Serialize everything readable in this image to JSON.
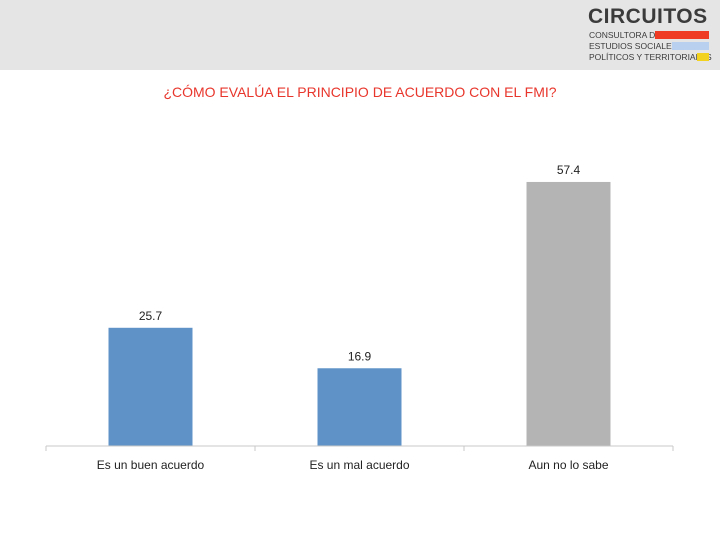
{
  "brand": {
    "name": "CIRCUITOS",
    "line1": "CONSULTORA DE",
    "line2": "ESTUDIOS SOCIALES,",
    "line3": "POLÍTICOS Y TERRITORIALES",
    "colors": [
      "#ef3a24",
      "#b9d0ee",
      "#f2d21e"
    ]
  },
  "chart_data": {
    "type": "bar",
    "title": "¿CÓMO EVALÚA EL PRINCIPIO DE ACUERDO CON EL FMI?",
    "xlabel": "",
    "ylabel": "",
    "categories": [
      "Es un buen acuerdo",
      "Es un mal acuerdo",
      "Aun no lo sabe"
    ],
    "values": [
      25.7,
      16.9,
      57.4
    ],
    "value_labels": [
      "25.7",
      "16.9",
      "57.4"
    ],
    "colors": [
      "#5f93c8",
      "#5f93c8",
      "#b4b4b4"
    ],
    "ylim": [
      0,
      60
    ],
    "grid": false,
    "title_color": "#e8362c"
  }
}
